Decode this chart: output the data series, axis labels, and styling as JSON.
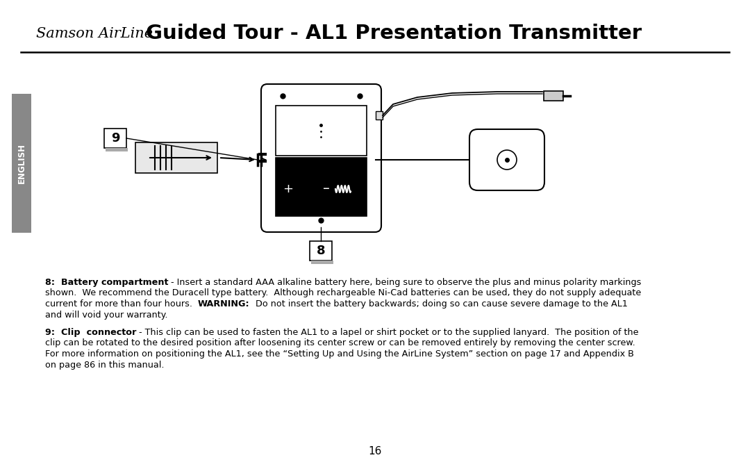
{
  "title_italic": "Samson AirLine",
  "title_bold": "Guided Tour - AL1 Presentation Transmitter",
  "sidebar_text": "ENGLISH",
  "page_number": "16",
  "bg_color": "#ffffff",
  "text_color": "#000000",
  "p8_lines": [
    [
      [
        "8:  Battery compartment",
        true
      ],
      [
        " - Insert a standard AAA alkaline battery here, being sure to observe the plus and minus polarity markings",
        false
      ]
    ],
    [
      [
        "shown.  We recommend the Duracell type battery.  Although rechargeable Ni-Cad batteries can be used, they do not supply adequate",
        false
      ]
    ],
    [
      [
        "current for more than four hours.  ",
        false
      ],
      [
        "WARNING:",
        true
      ],
      [
        "  Do not insert the battery backwards; doing so can cause severe damage to the AL1",
        false
      ]
    ],
    [
      [
        "and will void your warranty.",
        false
      ]
    ]
  ],
  "p9_lines": [
    [
      [
        "9:  Clip  connector",
        true
      ],
      [
        " - This clip can be used to fasten the AL1 to a lapel or shirt pocket or to the supplied lanyard.  The position of the",
        false
      ]
    ],
    [
      [
        "clip can be rotated to the desired position after loosening its center screw or can be removed entirely by removing the center screw.",
        false
      ]
    ],
    [
      [
        "For more information on positioning the AL1, see the “Setting Up and Using the AirLine System” section on page 17 and Appendix B",
        false
      ]
    ],
    [
      [
        "on page 86 in this manual.",
        false
      ]
    ]
  ]
}
